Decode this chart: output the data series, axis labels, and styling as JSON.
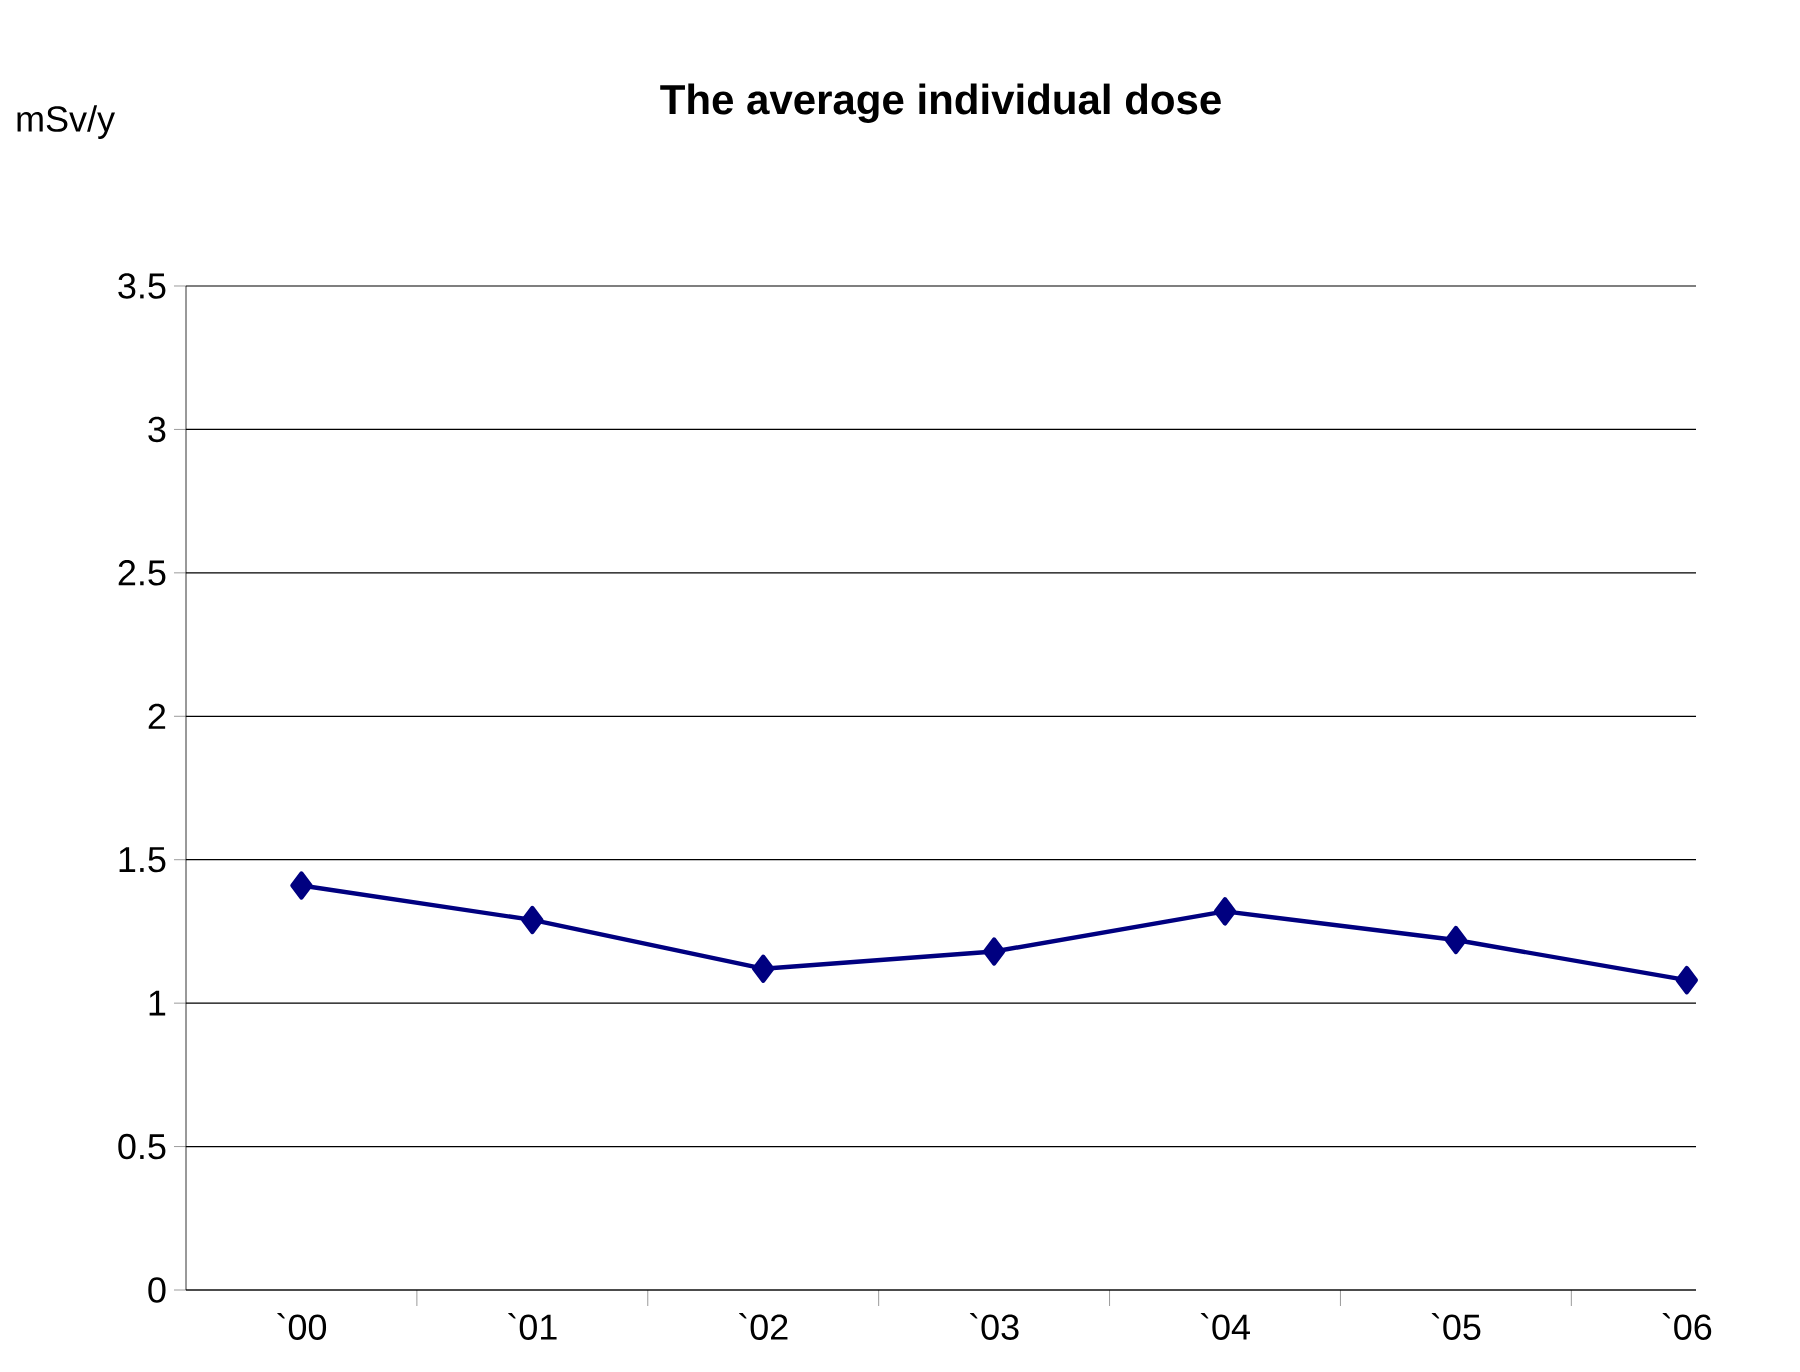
{
  "chart_data": {
    "type": "line",
    "title": "The average individual dose",
    "ylabel": "mSv/y",
    "categories": [
      "`00",
      "`01",
      "`02",
      "`03",
      "`04",
      "`05",
      "`06"
    ],
    "series": [
      {
        "color": "#000080",
        "values": [
          1.41,
          1.29,
          1.12,
          1.18,
          1.32,
          1.22,
          1.08
        ]
      }
    ],
    "ylim": [
      0,
      3.5
    ],
    "yticks": [
      0,
      0.5,
      1,
      1.5,
      2,
      2.5,
      3,
      3.5
    ],
    "grid": "y",
    "marker": "diamond",
    "line_style": "solid"
  }
}
